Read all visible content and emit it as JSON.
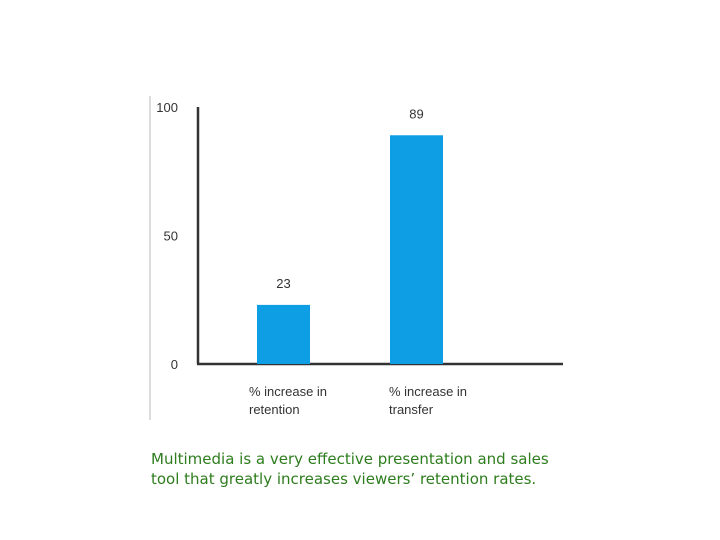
{
  "chart_data": {
    "type": "bar",
    "categories": [
      [
        "% increase in",
        "retention"
      ],
      [
        "% increase in",
        "transfer"
      ]
    ],
    "values": [
      23,
      89
    ],
    "data_labels": [
      "23",
      "89"
    ],
    "yticks": [
      0,
      50,
      100
    ],
    "ylim": [
      0,
      100
    ],
    "title": "",
    "xlabel": "",
    "ylabel": "",
    "grid": false,
    "bar_color": "#0d9ee3"
  },
  "caption": {
    "line1": "Multimedia is a very effective presentation and sales",
    "line2": "tool that greatly increases viewers’ retention rates."
  }
}
